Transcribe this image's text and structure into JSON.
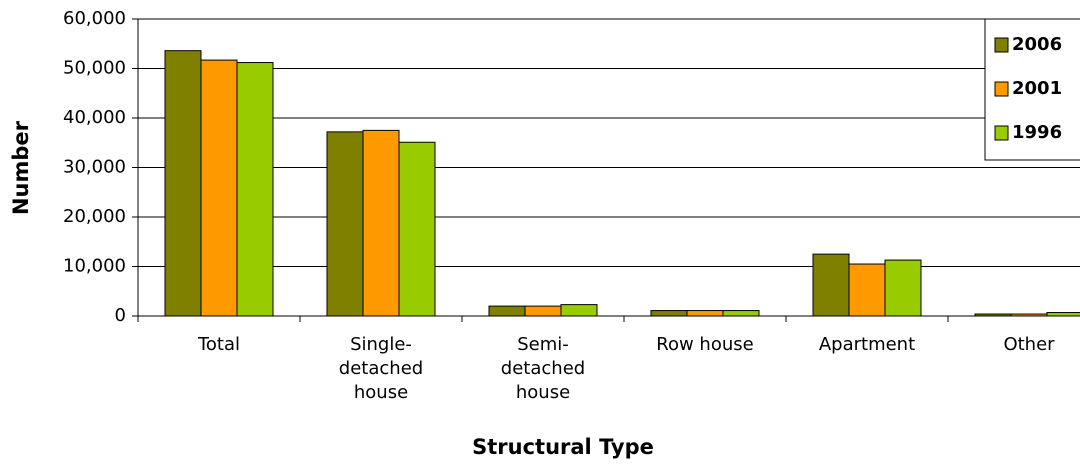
{
  "chart_data": {
    "type": "bar",
    "xlabel": "Structural Type",
    "ylabel": "Number",
    "categories": [
      "Total",
      "Single-detached house",
      "Semi-detached house",
      "Row house",
      "Apartment",
      "Other"
    ],
    "series": [
      {
        "name": "2006",
        "color": "#808000",
        "values": [
          53600,
          37200,
          2000,
          1100,
          12500,
          400
        ]
      },
      {
        "name": "2001",
        "color": "#ff9900",
        "values": [
          51700,
          37500,
          2000,
          1100,
          10500,
          400
        ]
      },
      {
        "name": "1996",
        "color": "#99cc00",
        "values": [
          51200,
          35100,
          2300,
          1100,
          11300,
          700
        ]
      }
    ],
    "ylim": [
      0,
      60000
    ],
    "yticks": [
      0,
      {
        "value": 10000,
        "label": "10,000"
      },
      {
        "value": 20000,
        "label": "20,000"
      },
      {
        "value": 30000,
        "label": "30,000"
      },
      {
        "value": 40000,
        "label": "40,000"
      },
      {
        "value": 50000,
        "label": "50,000"
      },
      {
        "value": 60000,
        "label": "60,000"
      }
    ],
    "grid": true,
    "legend": "upper right"
  }
}
